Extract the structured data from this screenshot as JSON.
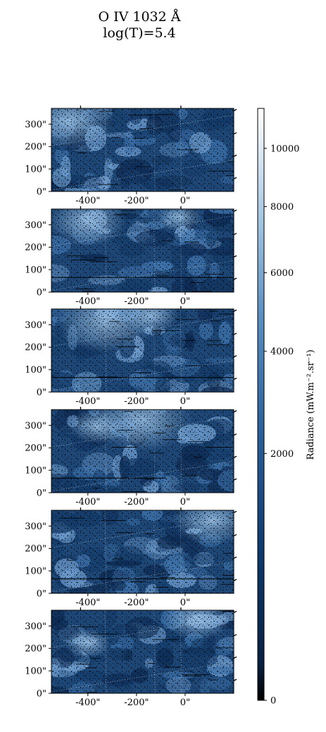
{
  "chart_data": {
    "type": "heatmap",
    "title_line1": "O IV 1032 Å",
    "title_line2": "log(T)=5.4",
    "panels": [
      {
        "xticks": [
          "-400\"",
          "-200\"",
          "0\""
        ],
        "yticks": [
          "300\"",
          "200\"",
          "100\"",
          "0\""
        ]
      },
      {
        "xticks": [
          "-400\"",
          "-200\"",
          "0\""
        ],
        "yticks": [
          "300\"",
          "200\"",
          "100\"",
          "0\""
        ]
      },
      {
        "xticks": [
          "-400\"",
          "-200\"",
          "0\""
        ],
        "yticks": [
          "300\"",
          "200\"",
          "100\"",
          "0\""
        ]
      },
      {
        "xticks": [
          "-400\"",
          "-200\"",
          "0\""
        ],
        "yticks": [
          "300\"",
          "200\"",
          "100\"",
          "0\""
        ]
      },
      {
        "xticks": [
          "-400\"",
          "-200\"",
          "0\""
        ],
        "yticks": [
          "300\"",
          "200\"",
          "100\"",
          "0\""
        ]
      },
      {
        "xticks": [
          "-400\"",
          "-200\"",
          "0\""
        ],
        "yticks": [
          "300\"",
          "200\"",
          "100\"",
          "0\""
        ]
      }
    ],
    "x_ticks_data": [
      -400,
      -200,
      0
    ],
    "y_ticks_data": [
      300,
      200,
      100,
      0
    ],
    "xlim": [
      -550,
      200
    ],
    "ylim": [
      0,
      370
    ],
    "colorbar": {
      "label": "Radiance (mW.m⁻².sr⁻¹)",
      "ticks": [
        0,
        2000,
        4000,
        6000,
        8000,
        10000
      ],
      "tick_labels": [
        "0",
        "2000",
        "4000",
        "6000",
        "8000",
        "10000"
      ],
      "range": [
        0,
        11500
      ],
      "scale": "sqrt",
      "colormap": "Blues_r",
      "color_low": "#08101f",
      "color_high": "#ffffff"
    }
  }
}
